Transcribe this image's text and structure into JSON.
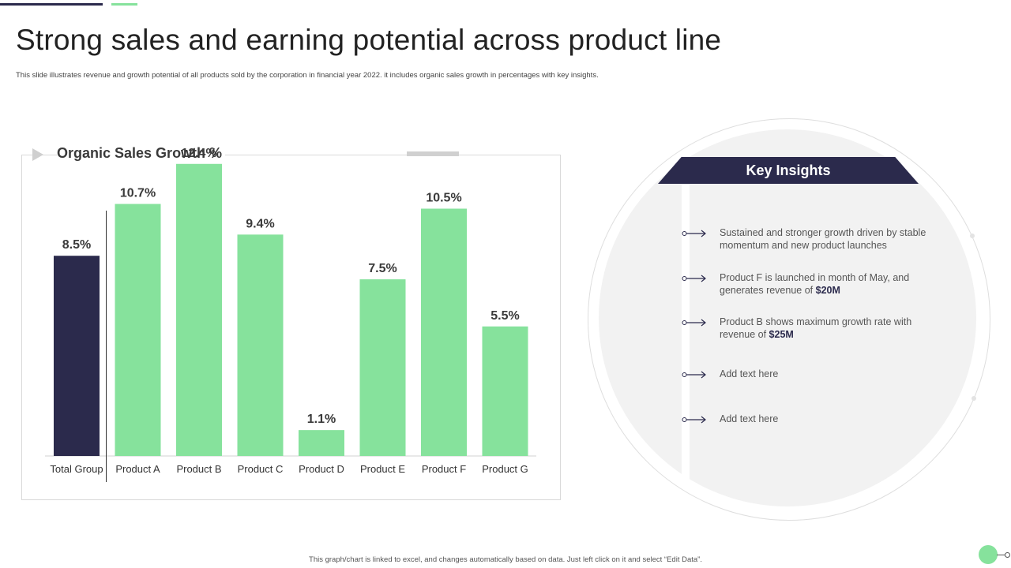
{
  "slide": {
    "title": "Strong sales and earning potential across product line",
    "subtitle": "This slide illustrates revenue and growth potential of all products sold by the corporation in financial year 2022. it includes organic sales growth in percentages with key insights.",
    "footer": "This graph/chart is linked to excel, and changes automatically based on data. Just left click on it and select “Edit Data”."
  },
  "colors": {
    "dark": "#2b2a4c",
    "green": "#86e29c"
  },
  "chart_data": {
    "type": "bar",
    "title": "Organic Sales Growth %",
    "categories": [
      "Total Group",
      "Product A",
      "Product B",
      "Product C",
      "Product D",
      "Product E",
      "Product F",
      "Product G"
    ],
    "values": [
      8.5,
      10.7,
      12.4,
      9.4,
      1.1,
      7.5,
      10.5,
      5.5
    ],
    "data_labels": [
      "8.5%",
      "10.7%",
      "12.4%",
      "9.4%",
      "1.1%",
      "7.5%",
      "10.5%",
      "5.5%"
    ],
    "bar_colors": [
      "#2b2a4c",
      "#86e29c",
      "#86e29c",
      "#86e29c",
      "#86e29c",
      "#86e29c",
      "#86e29c",
      "#86e29c"
    ],
    "ylim": [
      0,
      14
    ],
    "xlabel": "",
    "ylabel": "",
    "grid": false,
    "legend": "none"
  },
  "key_insights": {
    "title": "Key Insights",
    "items": [
      {
        "text": "Sustained and stronger growth driven  by stable momentum and new product launches",
        "bold": ""
      },
      {
        "text": "Product F is launched  in month of May, and generates revenue  of ",
        "bold": "$20M"
      },
      {
        "text": "Product B shows maximum growth rate with revenue  of ",
        "bold": "$25M"
      },
      {
        "text": "Add text here",
        "bold": ""
      },
      {
        "text": "Add text here",
        "bold": ""
      }
    ]
  }
}
